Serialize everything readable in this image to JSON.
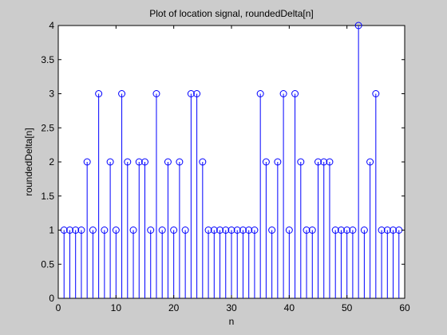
{
  "chart_data": {
    "type": "stem",
    "title": "Plot of location signal, roundedDelta[n]",
    "xlabel": "n",
    "ylabel": "roundedDelta[n]",
    "xlim": [
      0,
      60
    ],
    "ylim": [
      0,
      4
    ],
    "xticks": [
      0,
      10,
      20,
      30,
      40,
      50,
      60
    ],
    "yticks": [
      0,
      0.5,
      1,
      1.5,
      2,
      2.5,
      3,
      3.5,
      4
    ],
    "ytick_labels": [
      "0",
      "0.5",
      "1",
      "1.5",
      "2",
      "2.5",
      "3",
      "3.5",
      "4"
    ],
    "grid": false,
    "colors": {
      "stem": "#0000ff",
      "axes_bg": "#ffffff",
      "figure_bg": "#cccccc"
    },
    "series": [
      {
        "x": [
          1,
          2,
          3,
          4,
          5,
          6,
          7,
          8,
          9,
          10,
          11,
          12,
          13,
          14,
          15,
          16,
          17,
          18,
          19,
          20,
          21,
          22,
          23,
          24,
          25,
          26,
          27,
          28,
          29,
          30,
          31,
          32,
          33,
          34,
          35,
          36,
          37,
          38,
          39,
          40,
          41,
          42,
          43,
          44,
          45,
          46,
          47,
          48,
          49,
          50,
          51,
          52,
          53,
          54,
          55,
          56,
          57,
          58,
          59
        ],
        "values": [
          1,
          1,
          1,
          1,
          2,
          1,
          3,
          1,
          2,
          1,
          3,
          2,
          1,
          2,
          2,
          1,
          3,
          1,
          2,
          1,
          2,
          1,
          3,
          3,
          2,
          1,
          1,
          1,
          1,
          1,
          1,
          1,
          1,
          1,
          3,
          2,
          1,
          2,
          3,
          1,
          3,
          2,
          1,
          1,
          2,
          2,
          2,
          1,
          1,
          1,
          1,
          4,
          1,
          2,
          3,
          1,
          1,
          1,
          1
        ]
      }
    ]
  }
}
